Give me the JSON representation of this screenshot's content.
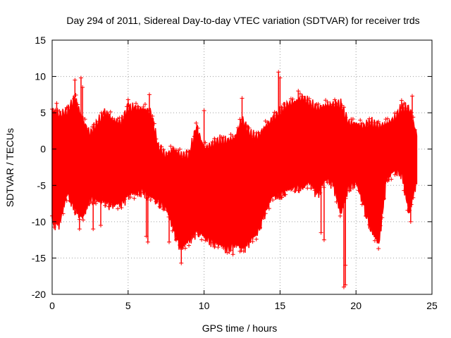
{
  "chart_data": {
    "type": "scatter",
    "title": "Day 294 of 2011, Sidereal Day-to-day VTEC variation (SDTVAR) for receiver trds",
    "xlabel": "GPS time / hours",
    "ylabel": "SDTVAR / TECUs",
    "xlim": [
      0,
      25
    ],
    "ylim": [
      -20,
      15
    ],
    "xticks": [
      0,
      5,
      10,
      15,
      20,
      25
    ],
    "yticks": [
      -20,
      -15,
      -10,
      -5,
      0,
      5,
      10,
      15
    ],
    "xtick_labels": [
      "0",
      "5",
      "10",
      "15",
      "20",
      "25"
    ],
    "ytick_labels": [
      "-20",
      "-15",
      "-10",
      "-5",
      "0",
      "5",
      "10",
      "15"
    ],
    "grid": true,
    "marker": "plus",
    "series_color": "#ff0000",
    "x_data_range": [
      0,
      24
    ],
    "envelope": [
      {
        "t": 0.0,
        "upper": 5.5,
        "lower": -10.0
      },
      {
        "t": 0.5,
        "upper": 4.5,
        "lower": -10.0
      },
      {
        "t": 1.0,
        "upper": 5.0,
        "lower": -6.0
      },
      {
        "t": 1.5,
        "upper": 7.0,
        "lower": -8.0
      },
      {
        "t": 2.0,
        "upper": 4.0,
        "lower": -9.5
      },
      {
        "t": 2.5,
        "upper": 2.0,
        "lower": -6.5
      },
      {
        "t": 3.0,
        "upper": 3.5,
        "lower": -7.0
      },
      {
        "t": 3.5,
        "upper": 5.0,
        "lower": -7.0
      },
      {
        "t": 4.0,
        "upper": 4.0,
        "lower": -7.5
      },
      {
        "t": 4.5,
        "upper": 3.5,
        "lower": -7.5
      },
      {
        "t": 5.0,
        "upper": 5.5,
        "lower": -6.0
      },
      {
        "t": 5.5,
        "upper": 5.5,
        "lower": -6.0
      },
      {
        "t": 6.0,
        "upper": 5.5,
        "lower": -5.5
      },
      {
        "t": 6.5,
        "upper": 5.0,
        "lower": -6.5
      },
      {
        "t": 7.0,
        "upper": 0.0,
        "lower": -7.0
      },
      {
        "t": 7.5,
        "upper": -1.0,
        "lower": -8.0
      },
      {
        "t": 8.0,
        "upper": 0.0,
        "lower": -11.0
      },
      {
        "t": 8.5,
        "upper": -1.0,
        "lower": -13.5
      },
      {
        "t": 9.0,
        "upper": -1.0,
        "lower": -12.5
      },
      {
        "t": 9.5,
        "upper": 3.0,
        "lower": -11.0
      },
      {
        "t": 10.0,
        "upper": 0.0,
        "lower": -12.0
      },
      {
        "t": 10.5,
        "upper": 0.5,
        "lower": -12.5
      },
      {
        "t": 11.0,
        "upper": 1.0,
        "lower": -13.0
      },
      {
        "t": 11.5,
        "upper": 1.0,
        "lower": -13.5
      },
      {
        "t": 12.0,
        "upper": 1.5,
        "lower": -13.0
      },
      {
        "t": 12.5,
        "upper": 4.0,
        "lower": -13.5
      },
      {
        "t": 13.0,
        "upper": 2.0,
        "lower": -12.5
      },
      {
        "t": 13.5,
        "upper": 1.5,
        "lower": -11.5
      },
      {
        "t": 14.0,
        "upper": 3.0,
        "lower": -8.5
      },
      {
        "t": 14.5,
        "upper": 4.0,
        "lower": -6.5
      },
      {
        "t": 15.0,
        "upper": 5.0,
        "lower": -6.0
      },
      {
        "t": 15.5,
        "upper": 6.0,
        "lower": -5.5
      },
      {
        "t": 16.0,
        "upper": 6.5,
        "lower": -5.0
      },
      {
        "t": 16.5,
        "upper": 7.0,
        "lower": -5.0
      },
      {
        "t": 17.0,
        "upper": 6.0,
        "lower": -4.5
      },
      {
        "t": 17.5,
        "upper": 5.5,
        "lower": -6.0
      },
      {
        "t": 18.0,
        "upper": 6.0,
        "lower": -4.0
      },
      {
        "t": 18.5,
        "upper": 6.0,
        "lower": -4.5
      },
      {
        "t": 19.0,
        "upper": 6.0,
        "lower": -9.0
      },
      {
        "t": 19.5,
        "upper": 3.5,
        "lower": -5.0
      },
      {
        "t": 20.0,
        "upper": 3.5,
        "lower": -4.5
      },
      {
        "t": 20.5,
        "upper": 3.0,
        "lower": -7.5
      },
      {
        "t": 21.0,
        "upper": 3.5,
        "lower": -11.0
      },
      {
        "t": 21.5,
        "upper": 3.0,
        "lower": -13.0
      },
      {
        "t": 22.0,
        "upper": 3.5,
        "lower": -4.0
      },
      {
        "t": 22.5,
        "upper": 4.0,
        "lower": -3.0
      },
      {
        "t": 23.0,
        "upper": 5.5,
        "lower": -3.0
      },
      {
        "t": 23.5,
        "upper": 5.5,
        "lower": -9.0
      },
      {
        "t": 24.0,
        "upper": 2.0,
        "lower": -4.0
      }
    ],
    "outliers": [
      {
        "x": 0.3,
        "y": 6.3
      },
      {
        "x": 1.5,
        "y": 9.5
      },
      {
        "x": 1.9,
        "y": 9.8
      },
      {
        "x": 2.0,
        "y": 8.5
      },
      {
        "x": 1.8,
        "y": -11.0
      },
      {
        "x": 2.7,
        "y": -11.0
      },
      {
        "x": 3.2,
        "y": -10.5
      },
      {
        "x": 5.0,
        "y": 6.8
      },
      {
        "x": 6.4,
        "y": 7.5
      },
      {
        "x": 6.2,
        "y": -12.0
      },
      {
        "x": 6.3,
        "y": -12.8
      },
      {
        "x": 7.7,
        "y": -12.8
      },
      {
        "x": 8.5,
        "y": -15.7
      },
      {
        "x": 10.0,
        "y": 5.3
      },
      {
        "x": 11.9,
        "y": -14.5
      },
      {
        "x": 12.5,
        "y": 7.0
      },
      {
        "x": 14.9,
        "y": 10.6
      },
      {
        "x": 15.0,
        "y": 9.8
      },
      {
        "x": 16.2,
        "y": 8.0
      },
      {
        "x": 17.7,
        "y": -11.5
      },
      {
        "x": 17.9,
        "y": -12.5
      },
      {
        "x": 19.2,
        "y": -19.0
      },
      {
        "x": 19.3,
        "y": -18.7
      },
      {
        "x": 19.3,
        "y": -16.0
      },
      {
        "x": 23.0,
        "y": 6.7
      },
      {
        "x": 23.7,
        "y": 7.3
      },
      {
        "x": 23.6,
        "y": -10.0
      }
    ]
  }
}
